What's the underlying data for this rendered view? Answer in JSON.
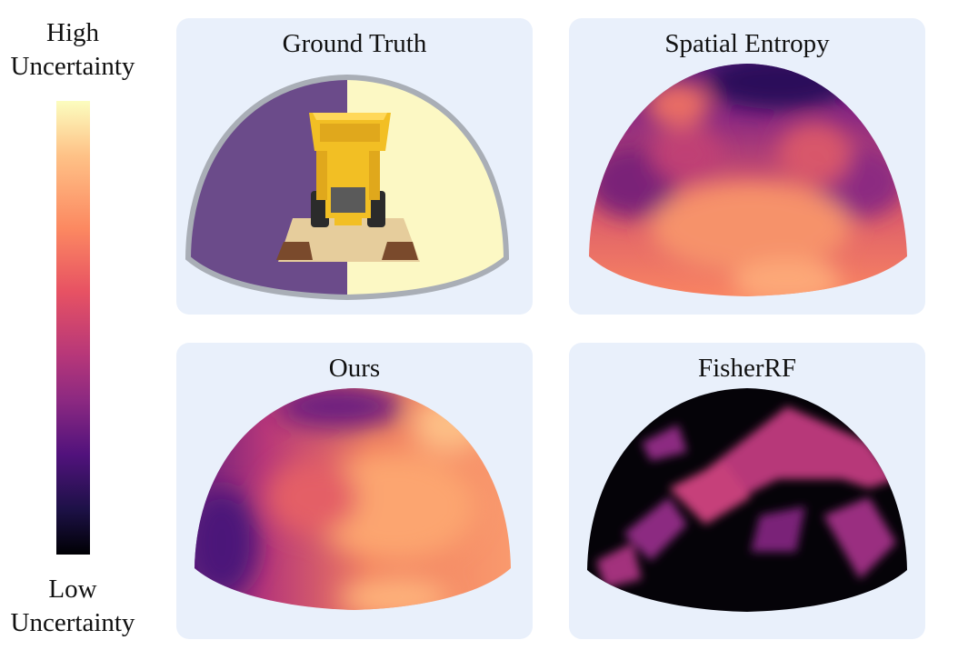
{
  "legend": {
    "high_label": "High\nUncertainty",
    "low_label": "Low\nUncertainty",
    "colormap": [
      "#fcfdbf",
      "#fec287",
      "#fc8961",
      "#e75263",
      "#b73779",
      "#8c2981",
      "#51127c",
      "#1d1147",
      "#000004"
    ]
  },
  "panels": {
    "ground_truth": {
      "title": "Ground Truth",
      "left_half_color": "#6b4b8a",
      "right_half_color": "#fcf8c4",
      "rim_color": "#a9aeb6"
    },
    "spatial_entropy": {
      "title": "Spatial Entropy"
    },
    "ours": {
      "title": "Ours"
    },
    "fisherrf": {
      "title": "FisherRF"
    }
  },
  "colors": {
    "panel_background": "#e9f0fb",
    "lego_yellow": "#f2bf24",
    "lego_base": "#e6cd9c",
    "lego_brown": "#7a4a2c"
  }
}
